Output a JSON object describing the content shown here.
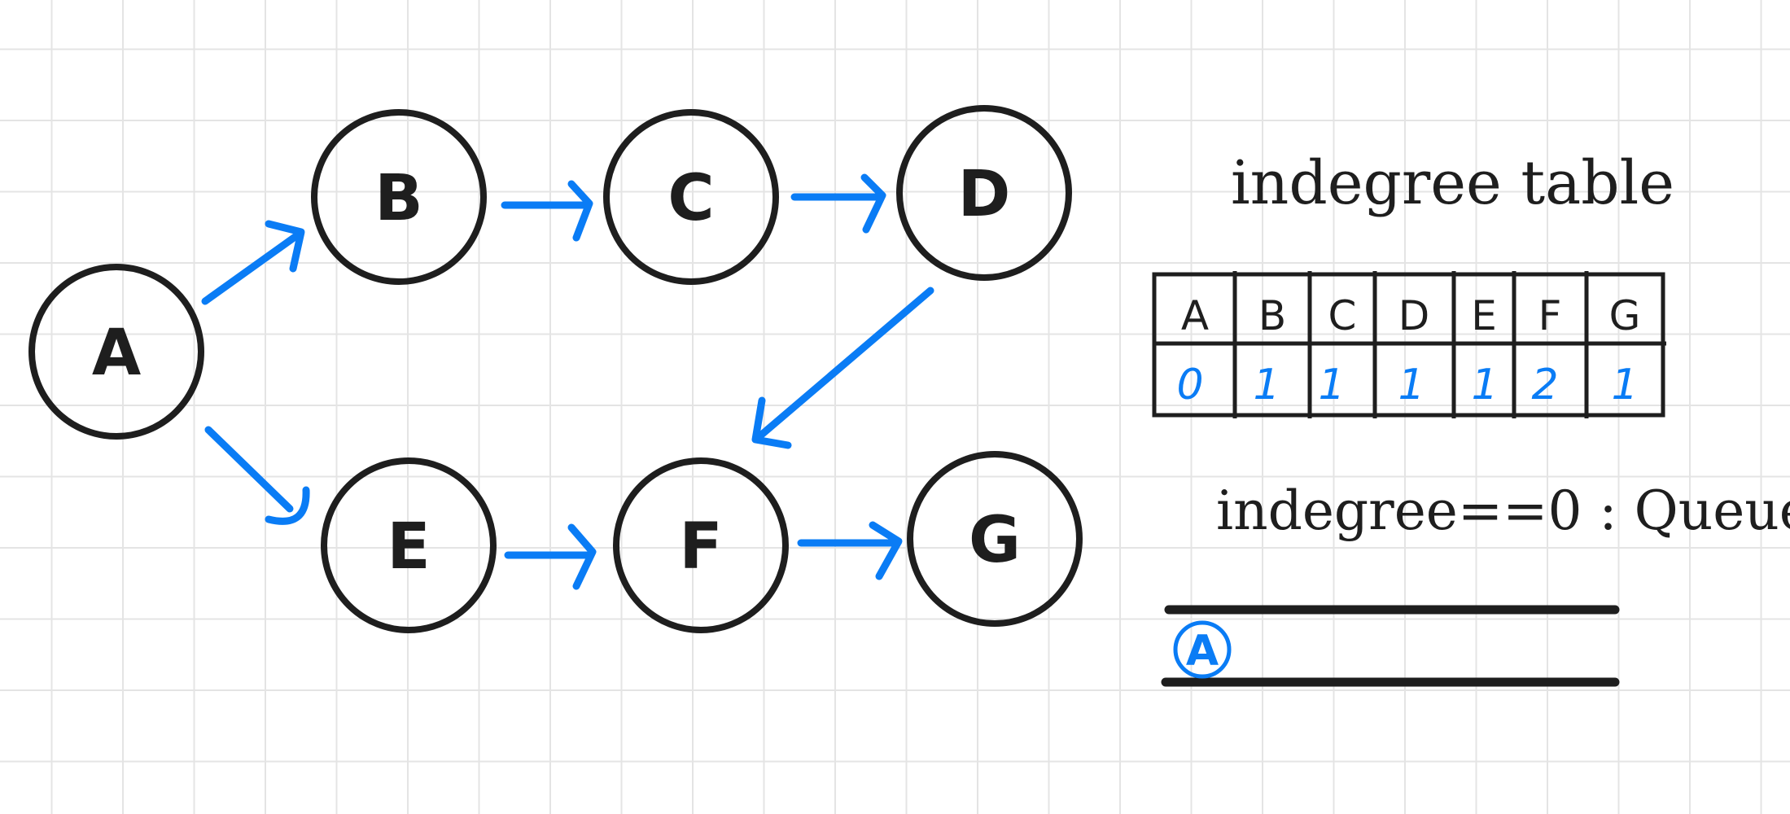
{
  "colors": {
    "ink": "#1e1e1e",
    "accent": "#0a7cf5",
    "grid": "#e4e4e4"
  },
  "nodes": [
    {
      "id": "A",
      "label": "A"
    },
    {
      "id": "B",
      "label": "B"
    },
    {
      "id": "C",
      "label": "C"
    },
    {
      "id": "D",
      "label": "D"
    },
    {
      "id": "E",
      "label": "E"
    },
    {
      "id": "F",
      "label": "F"
    },
    {
      "id": "G",
      "label": "G"
    }
  ],
  "edges": [
    {
      "from": "A",
      "to": "B"
    },
    {
      "from": "B",
      "to": "C"
    },
    {
      "from": "C",
      "to": "D"
    },
    {
      "from": "D",
      "to": "F"
    },
    {
      "from": "A",
      "to": "E"
    },
    {
      "from": "E",
      "to": "F"
    },
    {
      "from": "F",
      "to": "G"
    }
  ],
  "indegree_table": {
    "title": "indegree table",
    "headers": [
      "A",
      "B",
      "C",
      "D",
      "E",
      "F",
      "G"
    ],
    "values": [
      "0",
      "1",
      "1",
      "1",
      "1",
      "2",
      "1"
    ]
  },
  "queue": {
    "caption": "indegree==0 : Queue",
    "items": [
      "A"
    ]
  }
}
